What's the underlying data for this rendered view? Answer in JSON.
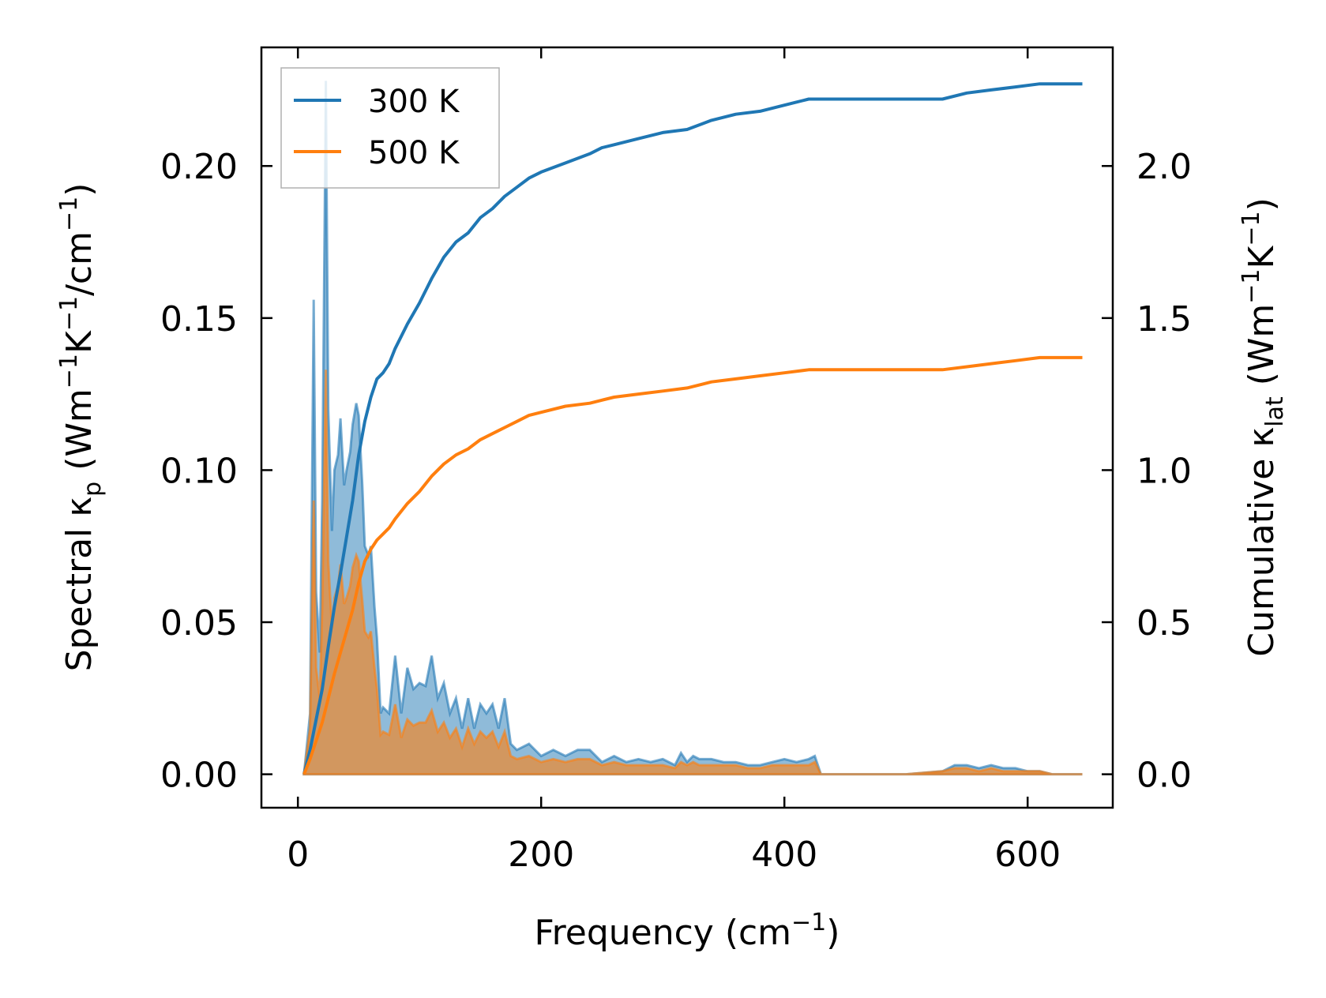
{
  "chart_data": {
    "type": "line",
    "x_axis": {
      "label_main": "Frequency (cm",
      "label_sup": "−1",
      "label_end": ")",
      "range": [
        -30,
        670
      ],
      "ticks": [
        0,
        200,
        400,
        600
      ],
      "tick_labels": [
        "0",
        "200",
        "400",
        "600"
      ]
    },
    "y_left_axis": {
      "label_main": "Spectral κ",
      "label_sub": "p",
      "label_a": " (Wm",
      "label_sup1": "−1",
      "label_b": "K",
      "label_sup2": "−1",
      "label_c": "/cm",
      "label_sup3": "−1",
      "label_d": ")",
      "range": [
        -0.011,
        0.239
      ],
      "ticks": [
        0.0,
        0.05,
        0.1,
        0.15,
        0.2
      ],
      "tick_labels": [
        "0.00",
        "0.05",
        "0.10",
        "0.15",
        "0.20"
      ]
    },
    "y_right_axis": {
      "label_main": "Cumulative κ",
      "label_sub": "lat",
      "label_a": " (Wm",
      "label_sup1": "−1",
      "label_b": "K",
      "label_sup2": "−1",
      "label_c": ")",
      "range": [
        -0.11,
        2.39
      ],
      "ticks": [
        0.0,
        0.5,
        1.0,
        1.5,
        2.0
      ],
      "tick_labels": [
        "0.0",
        "0.5",
        "1.0",
        "1.5",
        "2.0"
      ]
    },
    "grid": false,
    "legend_position": "top-left",
    "series": [
      {
        "name": "300 K",
        "color": "#1f77b4",
        "spectral": {
          "x": [
            5,
            10,
            13,
            15,
            18,
            20,
            23,
            25,
            28,
            30,
            33,
            35,
            38,
            40,
            43,
            45,
            48,
            50,
            53,
            55,
            58,
            60,
            63,
            65,
            68,
            70,
            75,
            80,
            85,
            90,
            95,
            100,
            105,
            110,
            115,
            120,
            125,
            130,
            135,
            140,
            145,
            150,
            155,
            160,
            165,
            170,
            175,
            180,
            190,
            200,
            210,
            220,
            230,
            240,
            250,
            260,
            270,
            280,
            290,
            300,
            310,
            315,
            320,
            325,
            330,
            340,
            350,
            360,
            370,
            380,
            390,
            400,
            410,
            420,
            425,
            430,
            440,
            450,
            500,
            530,
            540,
            550,
            560,
            570,
            580,
            590,
            600,
            610,
            620,
            645
          ],
          "y": [
            0.0,
            0.02,
            0.156,
            0.06,
            0.04,
            0.09,
            0.228,
            0.12,
            0.08,
            0.1,
            0.105,
            0.117,
            0.095,
            0.1,
            0.106,
            0.115,
            0.122,
            0.118,
            0.095,
            0.075,
            0.072,
            0.075,
            0.055,
            0.045,
            0.02,
            0.022,
            0.02,
            0.039,
            0.02,
            0.035,
            0.028,
            0.03,
            0.029,
            0.039,
            0.025,
            0.03,
            0.02,
            0.025,
            0.015,
            0.025,
            0.015,
            0.023,
            0.02,
            0.023,
            0.015,
            0.025,
            0.01,
            0.008,
            0.01,
            0.006,
            0.008,
            0.006,
            0.008,
            0.008,
            0.004,
            0.006,
            0.004,
            0.005,
            0.004,
            0.005,
            0.003,
            0.007,
            0.004,
            0.006,
            0.005,
            0.005,
            0.004,
            0.004,
            0.003,
            0.003,
            0.004,
            0.005,
            0.004,
            0.005,
            0.006,
            0.0,
            0.0,
            0.0,
            0.0,
            0.001,
            0.003,
            0.003,
            0.002,
            0.003,
            0.002,
            0.002,
            0.001,
            0.001,
            0.0,
            0.0
          ]
        },
        "cumulative": {
          "x": [
            5,
            10,
            15,
            20,
            25,
            30,
            35,
            40,
            45,
            50,
            55,
            60,
            65,
            70,
            75,
            80,
            90,
            100,
            110,
            120,
            130,
            140,
            150,
            160,
            170,
            180,
            190,
            200,
            220,
            240,
            250,
            260,
            280,
            300,
            320,
            340,
            360,
            380,
            400,
            420,
            425,
            430,
            450,
            500,
            530,
            550,
            570,
            590,
            610,
            645
          ],
          "y": [
            0.0,
            0.08,
            0.18,
            0.28,
            0.42,
            0.55,
            0.66,
            0.78,
            0.9,
            1.05,
            1.16,
            1.24,
            1.3,
            1.32,
            1.35,
            1.4,
            1.48,
            1.55,
            1.63,
            1.7,
            1.75,
            1.78,
            1.83,
            1.86,
            1.9,
            1.93,
            1.96,
            1.98,
            2.01,
            2.04,
            2.06,
            2.07,
            2.09,
            2.11,
            2.12,
            2.15,
            2.17,
            2.18,
            2.2,
            2.22,
            2.22,
            2.22,
            2.22,
            2.22,
            2.22,
            2.24,
            2.25,
            2.26,
            2.27,
            2.27
          ]
        }
      },
      {
        "name": "500 K",
        "color": "#ff7f0e",
        "spectral": {
          "x": [
            5,
            10,
            13,
            15,
            18,
            20,
            23,
            25,
            28,
            30,
            33,
            35,
            38,
            40,
            43,
            45,
            48,
            50,
            53,
            55,
            58,
            60,
            63,
            65,
            68,
            70,
            75,
            80,
            85,
            90,
            95,
            100,
            105,
            110,
            115,
            120,
            125,
            130,
            135,
            140,
            145,
            150,
            155,
            160,
            165,
            170,
            175,
            180,
            190,
            200,
            210,
            220,
            230,
            240,
            250,
            260,
            270,
            280,
            290,
            300,
            310,
            315,
            320,
            325,
            330,
            340,
            350,
            360,
            370,
            380,
            390,
            400,
            410,
            420,
            425,
            430,
            440,
            450,
            500,
            530,
            540,
            550,
            560,
            570,
            580,
            590,
            600,
            610,
            620,
            645
          ],
          "y": [
            0.0,
            0.015,
            0.09,
            0.035,
            0.025,
            0.055,
            0.133,
            0.07,
            0.048,
            0.058,
            0.062,
            0.069,
            0.056,
            0.058,
            0.062,
            0.068,
            0.072,
            0.07,
            0.057,
            0.047,
            0.045,
            0.047,
            0.035,
            0.028,
            0.013,
            0.014,
            0.013,
            0.023,
            0.012,
            0.018,
            0.016,
            0.017,
            0.017,
            0.021,
            0.014,
            0.017,
            0.012,
            0.015,
            0.009,
            0.015,
            0.01,
            0.014,
            0.012,
            0.014,
            0.009,
            0.014,
            0.006,
            0.005,
            0.006,
            0.004,
            0.005,
            0.004,
            0.005,
            0.005,
            0.003,
            0.004,
            0.003,
            0.003,
            0.003,
            0.003,
            0.002,
            0.004,
            0.003,
            0.004,
            0.003,
            0.003,
            0.003,
            0.003,
            0.002,
            0.002,
            0.003,
            0.003,
            0.003,
            0.003,
            0.004,
            0.0,
            0.0,
            0.0,
            0.0,
            0.001,
            0.002,
            0.002,
            0.001,
            0.002,
            0.001,
            0.001,
            0.001,
            0.001,
            0.0,
            0.0
          ]
        },
        "cumulative": {
          "x": [
            5,
            10,
            15,
            20,
            25,
            30,
            35,
            40,
            45,
            50,
            55,
            60,
            65,
            70,
            75,
            80,
            90,
            100,
            110,
            120,
            130,
            140,
            150,
            160,
            170,
            180,
            190,
            200,
            220,
            240,
            250,
            260,
            280,
            300,
            320,
            340,
            360,
            380,
            400,
            420,
            425,
            430,
            450,
            500,
            530,
            550,
            570,
            590,
            610,
            645
          ],
          "y": [
            0.0,
            0.05,
            0.11,
            0.17,
            0.25,
            0.33,
            0.4,
            0.47,
            0.54,
            0.63,
            0.7,
            0.74,
            0.77,
            0.79,
            0.81,
            0.84,
            0.89,
            0.93,
            0.98,
            1.02,
            1.05,
            1.07,
            1.1,
            1.12,
            1.14,
            1.16,
            1.18,
            1.19,
            1.21,
            1.22,
            1.23,
            1.24,
            1.25,
            1.26,
            1.27,
            1.29,
            1.3,
            1.31,
            1.32,
            1.33,
            1.33,
            1.33,
            1.33,
            1.33,
            1.33,
            1.34,
            1.35,
            1.36,
            1.37,
            1.37
          ]
        }
      }
    ]
  }
}
